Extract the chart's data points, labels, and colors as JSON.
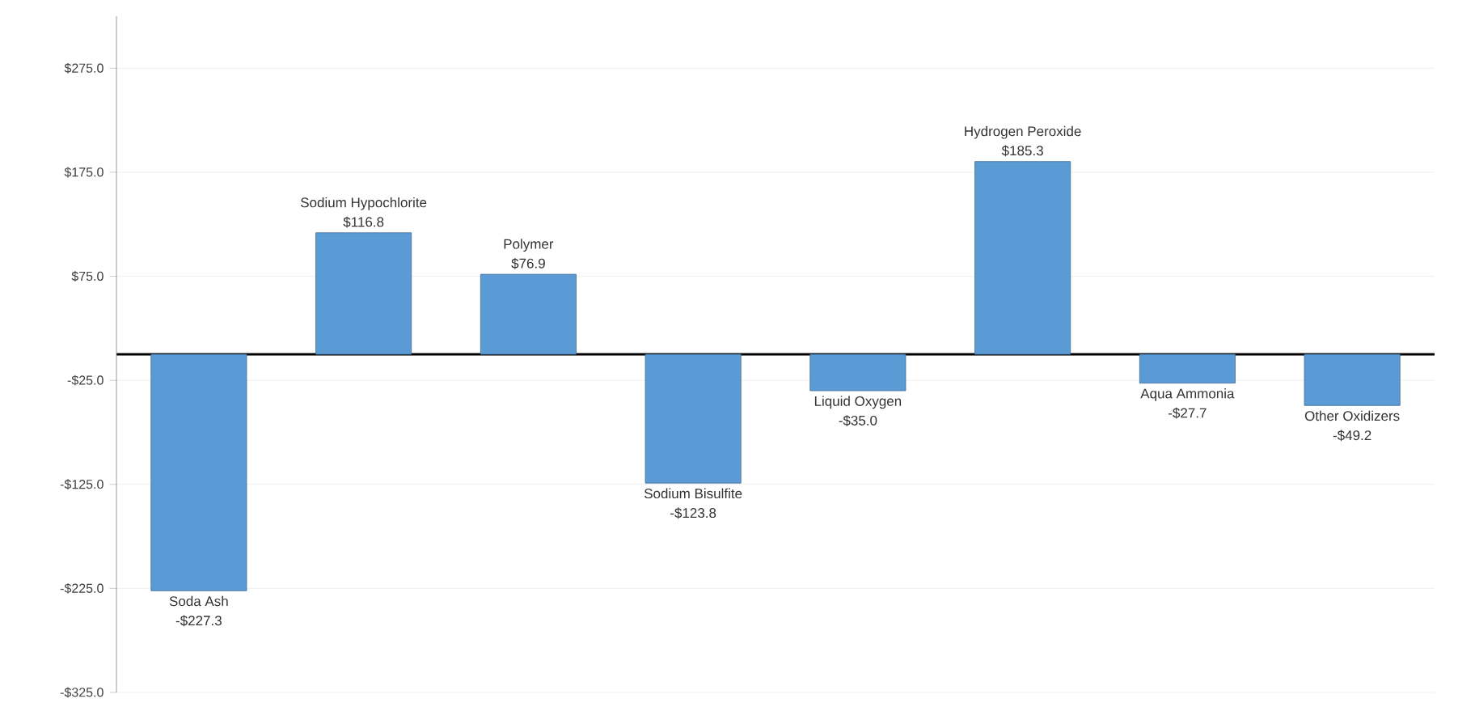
{
  "chart_data": {
    "type": "bar",
    "categories": [
      "Soda Ash",
      "Sodium Hypochlorite",
      "Polymer",
      "Sodium Bisulfite",
      "Liquid Oxygen",
      "Hydrogen Peroxide",
      "Aqua Ammonia",
      "Other Oxidizers"
    ],
    "values": [
      -227.3,
      116.8,
      76.9,
      -123.8,
      -35.0,
      185.3,
      -27.7,
      -49.2
    ],
    "value_labels": [
      "-$227.3",
      "$116.8",
      "$76.9",
      "-$123.8",
      "-$35.0",
      "$185.3",
      "-$27.7",
      "-$49.2"
    ],
    "color": "#5b9bd5",
    "ylim": [
      -325,
      325
    ],
    "yticks": [
      {
        "value": 275,
        "label": "$275.0"
      },
      {
        "value": 175,
        "label": "$175.0"
      },
      {
        "value": 75,
        "label": "$75.0"
      },
      {
        "value": -25,
        "label": "-$25.0"
      },
      {
        "value": -125,
        "label": "-$125.0"
      },
      {
        "value": -225,
        "label": "-$225.0"
      },
      {
        "value": -325,
        "label": "-$325.0"
      }
    ],
    "grid": "y"
  }
}
